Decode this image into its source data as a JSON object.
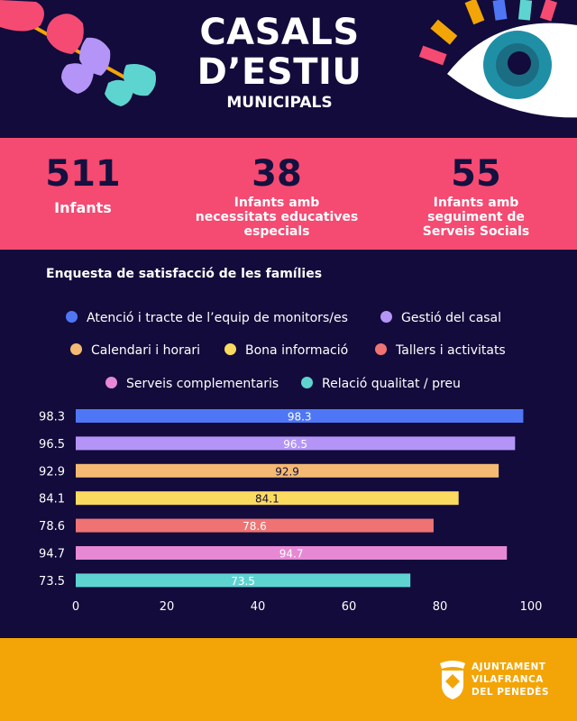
{
  "header": {
    "title_line1": "CASALS",
    "title_line2": "D’ESTIU",
    "title_line3": "MUNICIPALS"
  },
  "stats": [
    {
      "value": "511",
      "label": "Infants"
    },
    {
      "value": "38",
      "label": "Infants amb necessitats educatives especials"
    },
    {
      "value": "55",
      "label": "Infants amb seguiment de Serveis Socials"
    }
  ],
  "colors": {
    "background": "#120b3b",
    "stats_band": "#f54a72",
    "footer": "#f3a507",
    "number_text": "#14103f"
  },
  "chart_data": {
    "type": "bar",
    "orientation": "horizontal",
    "title": "Enquesta de satisfacció de les famílies",
    "xlim": [
      0,
      100
    ],
    "xticks": [
      0,
      20,
      40,
      60,
      80,
      100
    ],
    "legend_position": "top",
    "grid": false,
    "series": [
      {
        "name": "Atenció i tracte de l’equip de monitors/es",
        "value": 98.3,
        "color": "#4f77f5"
      },
      {
        "name": "Gestió del casal",
        "value": 96.5,
        "color": "#b495f7"
      },
      {
        "name": "Calendari i horari",
        "value": 92.9,
        "color": "#f4ba73"
      },
      {
        "name": "Bona informació",
        "value": 84.1,
        "color": "#fbdb5f"
      },
      {
        "name": "Tallers i activitats",
        "value": 78.6,
        "color": "#f07374"
      },
      {
        "name": "Serveis complementaris",
        "value": 94.7,
        "color": "#e788d4"
      },
      {
        "name": "Relació qualitat / preu",
        "value": 73.5,
        "color": "#5ed4d0"
      }
    ]
  },
  "footer": {
    "logo_line1": "AJUNTAMENT",
    "logo_line2": "VILAFRANCA",
    "logo_line3": "DEL PENEDÈS"
  }
}
